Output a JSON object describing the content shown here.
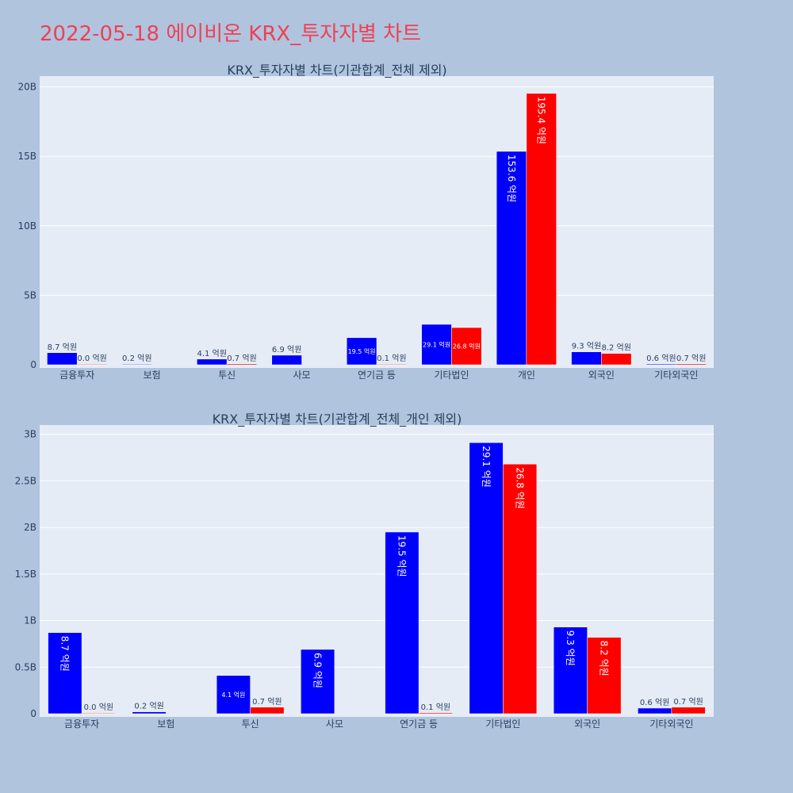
{
  "page_title": "2022-05-18 에이비온 KRX_투자자별 차트",
  "colors": {
    "background": "#b0c4de",
    "plot_background": "#e5ecf6",
    "gridline": "#ffffff",
    "series_buy": "#0000ff",
    "series_sell": "#ff0000",
    "title": "#ef4056",
    "text": "#2a3f5f"
  },
  "chart_data": [
    {
      "type": "bar",
      "title": "KRX_투자자별 차트(기관합계_전체 제외)",
      "categories": [
        "금융투자",
        "보험",
        "투신",
        "사모",
        "연기금 등",
        "기타법인",
        "개인",
        "외국인",
        "기타외국인"
      ],
      "series": [
        {
          "values": [
            870000000,
            20000000,
            410000000,
            690000000,
            1950000000,
            2910000000,
            15360000000,
            930000000,
            60000000
          ],
          "labels": [
            "8.7 억원",
            "0.2 억원",
            "4.1 억원",
            "6.9 억원",
            "19.5 억원",
            "29.1 억원",
            "153.6 억원",
            "9.3 억원",
            "0.6 억원"
          ]
        },
        {
          "values": [
            0,
            null,
            70000000,
            null,
            10000000,
            2680000000,
            19540000000,
            820000000,
            70000000
          ],
          "labels": [
            "0.0 억원",
            "",
            "0.7 억원",
            "",
            "0.1 억원",
            "26.8 억원",
            "195.4 억원",
            "8.2 억원",
            "0.7 억원"
          ]
        }
      ],
      "yticks": [
        0,
        5000000000,
        10000000000,
        15000000000,
        20000000000
      ],
      "ytick_labels": [
        "0",
        "5B",
        "10B",
        "15B",
        "20B"
      ],
      "ylim": [
        0,
        20000000000
      ],
      "xlabel": "",
      "ylabel": "",
      "grid": true
    },
    {
      "type": "bar",
      "title": "KRX_투자자별 차트(기관합계_전체_개인 제외)",
      "categories": [
        "금융투자",
        "보험",
        "투신",
        "사모",
        "연기금 등",
        "기타법인",
        "외국인",
        "기타외국인"
      ],
      "series": [
        {
          "values": [
            870000000,
            20000000,
            410000000,
            690000000,
            1950000000,
            2910000000,
            930000000,
            60000000
          ],
          "labels": [
            "8.7 억원",
            "0.2 억원",
            "4.1 억원",
            "6.9 억원",
            "19.5 억원",
            "29.1 억원",
            "9.3 억원",
            "0.6 억원"
          ]
        },
        {
          "values": [
            0,
            null,
            70000000,
            null,
            10000000,
            2680000000,
            820000000,
            70000000
          ],
          "labels": [
            "0.0 억원",
            "",
            "0.7 억원",
            "",
            "0.1 억원",
            "26.8 억원",
            "8.2 억원",
            "0.7 억원"
          ]
        }
      ],
      "yticks": [
        0,
        500000000,
        1000000000,
        1500000000,
        2000000000,
        2500000000,
        3000000000
      ],
      "ytick_labels": [
        "0",
        "0.5B",
        "1B",
        "1.5B",
        "2B",
        "2.5B",
        "3B"
      ],
      "ylim": [
        0,
        3000000000
      ],
      "xlabel": "",
      "ylabel": "",
      "grid": true
    }
  ]
}
